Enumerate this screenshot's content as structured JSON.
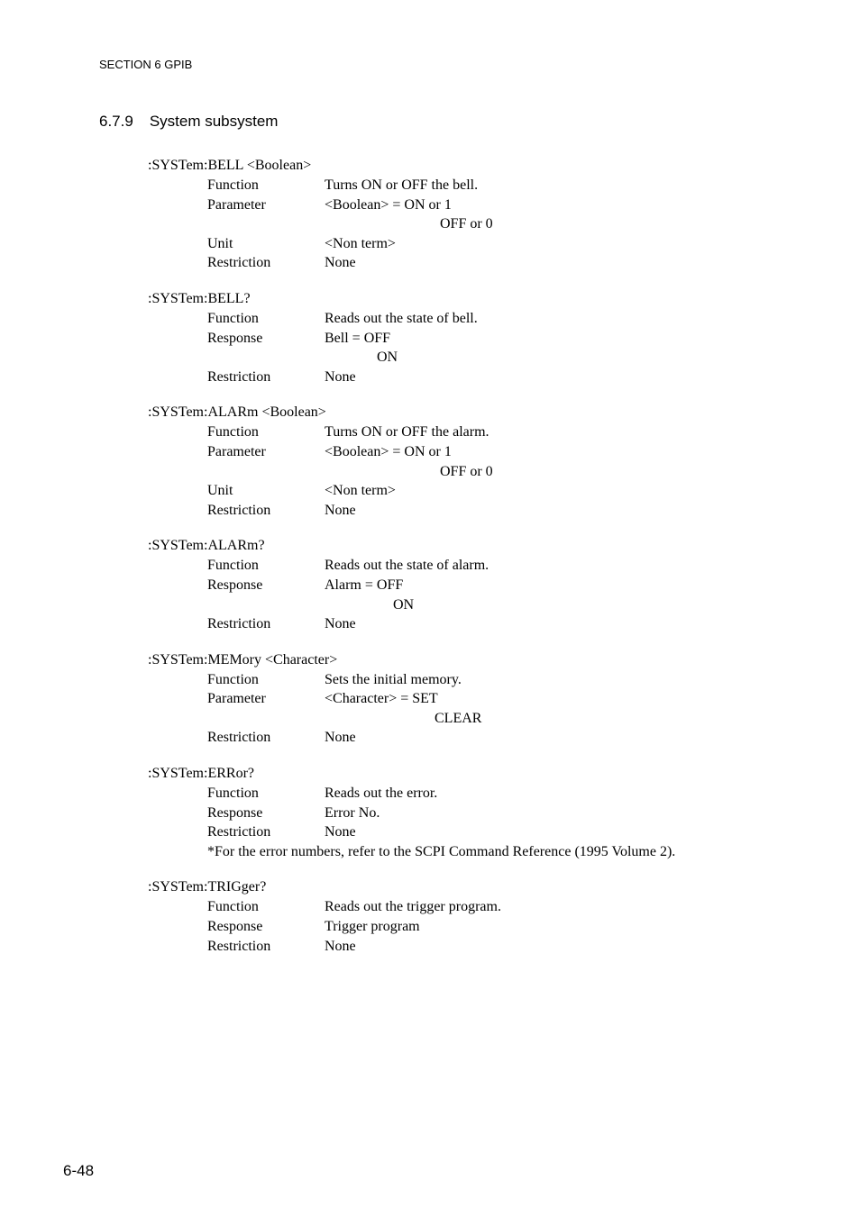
{
  "header": {
    "section": "SECTION 6   GPIB"
  },
  "subtitle": {
    "number": "6.7.9",
    "text": "System subsystem"
  },
  "blocks": [
    {
      "name": ":SYSTem:BELL   <Boolean>",
      "rows": [
        {
          "label": "Function",
          "value": "Turns ON or OFF the bell."
        },
        {
          "label": "Parameter",
          "value": "<Boolean>  =  ON or 1"
        },
        {
          "label": "",
          "value": "OFF or 0",
          "cls": "indent-sub"
        },
        {
          "label": "Unit",
          "value": "<Non term>"
        },
        {
          "label": "Restriction",
          "value": "None"
        }
      ]
    },
    {
      "name": ":SYSTem:BELL?",
      "rows": [
        {
          "label": "Function",
          "value": "Reads out the state of bell."
        },
        {
          "label": "Response",
          "value": "Bell  =  OFF"
        },
        {
          "label": "",
          "value": "ON",
          "cls": "indent-on"
        },
        {
          "label": "Restriction",
          "value": "None"
        }
      ]
    },
    {
      "name": ":SYSTem:ALARm   <Boolean>",
      "rows": [
        {
          "label": "Function",
          "value": "Turns ON or OFF the alarm."
        },
        {
          "label": "Parameter",
          "value": "<Boolean>  =  ON or 1"
        },
        {
          "label": "",
          "value": "OFF or 0",
          "cls": "indent-sub"
        },
        {
          "label": "Unit",
          "value": "<Non term>"
        },
        {
          "label": "Restriction",
          "value": "None"
        }
      ]
    },
    {
      "name": ":SYSTem:ALARm?",
      "rows": [
        {
          "label": "Function",
          "value": "Reads out the state of alarm."
        },
        {
          "label": "Response",
          "value": "Alarm =    OFF"
        },
        {
          "label": "",
          "value": "ON",
          "cls": "indent-alarm-on"
        },
        {
          "label": "Restriction",
          "value": "None"
        }
      ]
    },
    {
      "name": ":SYSTem:MEMory   <Character>",
      "rows": [
        {
          "label": "Function",
          "value": "Sets the initial memory."
        },
        {
          "label": "Parameter",
          "value": "<Character>  =  SET"
        },
        {
          "label": "",
          "value": "CLEAR",
          "cls": "indent-clear"
        },
        {
          "label": "Restriction",
          "value": "None"
        }
      ]
    },
    {
      "name": ":SYSTem:ERRor?",
      "rows": [
        {
          "label": "Function",
          "value": "Reads out the error."
        },
        {
          "label": "Response",
          "value": "Error No."
        },
        {
          "label": "Restriction",
          "value": "None"
        }
      ],
      "note": "*For the error numbers, refer to the SCPI Command Reference (1995 Volume 2)."
    },
    {
      "name": ":SYSTem:TRIGger?",
      "rows": [
        {
          "label": "Function",
          "value": "Reads out the trigger program."
        },
        {
          "label": "Response",
          "value": "Trigger program"
        },
        {
          "label": "Restriction",
          "value": "None"
        }
      ]
    }
  ],
  "footer": "6-48"
}
